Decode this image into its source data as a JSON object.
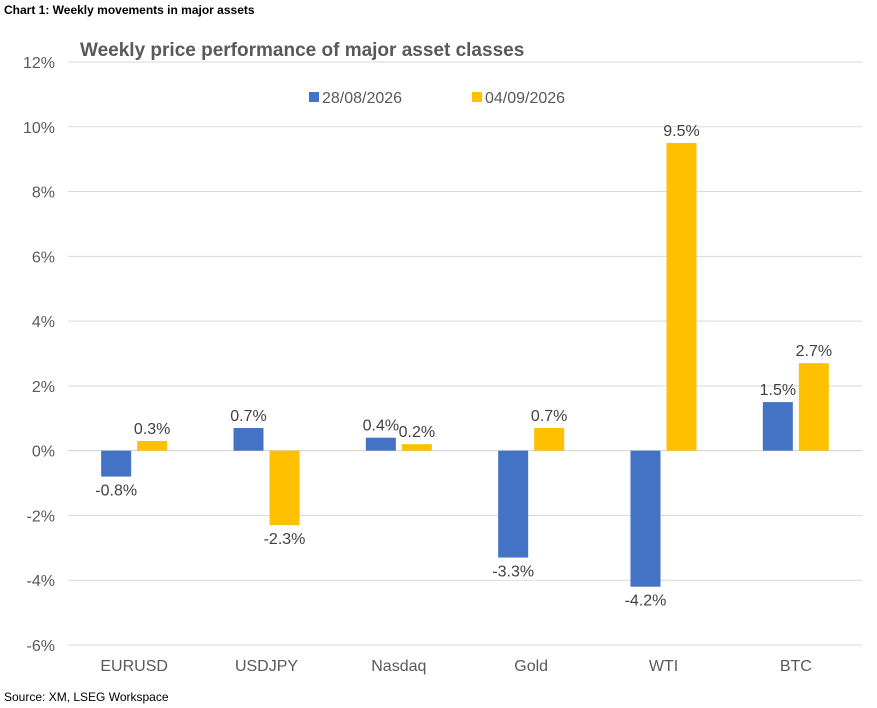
{
  "header": {
    "caption": "Chart 1: Weekly movements in major assets"
  },
  "footer": {
    "source": "Source: XM, LSEG Workspace"
  },
  "chart_data": {
    "type": "bar",
    "title": "Weekly price performance of major asset classes",
    "categories": [
      "EURUSD",
      "USDJPY",
      "Nasdaq",
      "Gold",
      "WTI",
      "BTC"
    ],
    "series": [
      {
        "name": "28/08/2026",
        "color": "#4472C4",
        "values": [
          -0.8,
          0.7,
          0.4,
          -3.3,
          -4.2,
          1.5
        ],
        "labels": [
          "-0.8%",
          "0.7%",
          "0.4%",
          "-3.3%",
          "-4.2%",
          "1.5%"
        ]
      },
      {
        "name": "04/09/2026",
        "color": "#FFC000",
        "values": [
          0.3,
          -2.3,
          0.2,
          0.7,
          9.5,
          2.7
        ],
        "labels": [
          "0.3%",
          "-2.3%",
          "0.2%",
          "0.7%",
          "9.5%",
          "2.7%"
        ]
      }
    ],
    "ylim": [
      -6,
      12
    ],
    "yticks": [
      -6,
      -4,
      -2,
      0,
      2,
      4,
      6,
      8,
      10,
      12
    ],
    "ytick_labels": [
      "-6%",
      "-4%",
      "-2%",
      "0%",
      "2%",
      "4%",
      "6%",
      "8%",
      "10%",
      "12%"
    ],
    "grid": true,
    "legend_position": "top"
  }
}
